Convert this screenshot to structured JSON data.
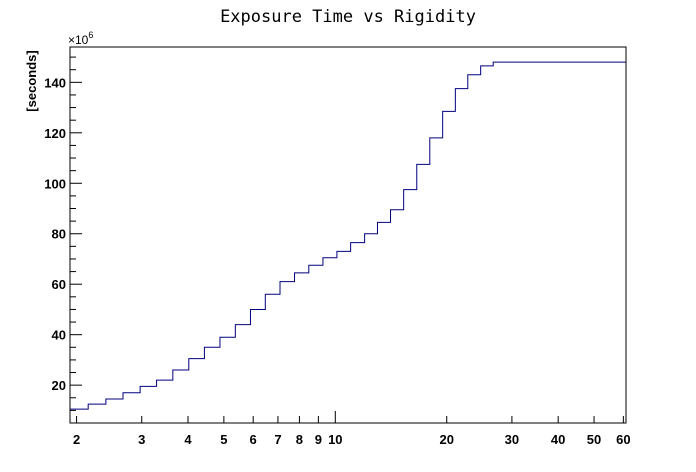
{
  "chart_data": {
    "type": "line",
    "title": "Exposure Time vs Rigidity",
    "xlabel": "",
    "ylabel": "[seconds]",
    "y_multiplier_label": "×10",
    "y_multiplier_exponent": "6",
    "x_scale": "log",
    "xlim": [
      1.92,
      61
    ],
    "ylim": [
      5,
      154
    ],
    "grid": false,
    "legend": "none",
    "line_color": "#00007f",
    "x_ticks": [
      2,
      3,
      4,
      5,
      6,
      7,
      8,
      9,
      10,
      20,
      30,
      40,
      50,
      60
    ],
    "x_tick_labels": [
      "2",
      "3",
      "4",
      "5",
      "6",
      "7",
      "8",
      "9",
      "10",
      "20",
      "30",
      "40",
      "50",
      "60"
    ],
    "y_ticks": [
      20,
      40,
      60,
      80,
      100,
      120,
      140
    ],
    "y_tick_labels": [
      "20",
      "40",
      "60",
      "80",
      "100",
      "120",
      "140"
    ],
    "series": [
      {
        "bin_edges": [
          1.92,
          2.15,
          2.4,
          2.67,
          2.97,
          3.29,
          3.64,
          4.02,
          4.43,
          4.88,
          5.37,
          5.9,
          6.47,
          7.09,
          7.76,
          8.48,
          9.26,
          10.1,
          11.0,
          12.0,
          13.0,
          14.1,
          15.3,
          16.6,
          18.0,
          19.5,
          21.1,
          22.8,
          24.7,
          26.7,
          61.0
        ],
        "values": [
          10.5,
          12.5,
          14.5,
          17.0,
          19.5,
          22.0,
          26.0,
          30.5,
          35.0,
          39.0,
          44.0,
          50.0,
          56.0,
          61.0,
          64.5,
          67.5,
          70.5,
          73.0,
          76.5,
          80.0,
          84.5,
          89.5,
          97.5,
          107.5,
          118.0,
          128.5,
          137.5,
          143.0,
          146.5,
          148.0
        ]
      }
    ]
  }
}
